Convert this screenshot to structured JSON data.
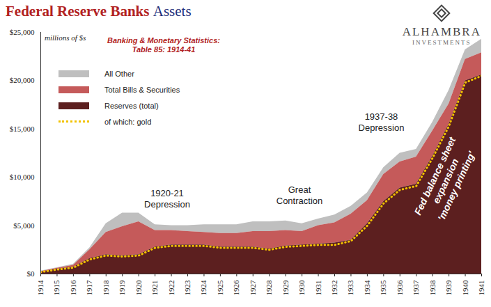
{
  "chart_data": {
    "type": "area",
    "title": "Federal Reserve Banks Assets",
    "logo": [
      "ALHAMBRA",
      "INVESTMENTS"
    ],
    "ylabel": "millions of $s",
    "stacked": true,
    "grid": false,
    "legend": "top-left",
    "x": [
      1914,
      1915,
      1916,
      1917,
      1918,
      1919,
      1920,
      1921,
      1922,
      1923,
      1924,
      1925,
      1926,
      1927,
      1928,
      1929,
      1930,
      1931,
      1932,
      1933,
      1934,
      1935,
      1936,
      1937,
      1938,
      1939,
      1940,
      1941
    ],
    "xlim": [
      1914,
      1941
    ],
    "xticks": [
      1914,
      1915,
      1916,
      1917,
      1918,
      1919,
      1920,
      1921,
      1922,
      1923,
      1924,
      1925,
      1926,
      1927,
      1928,
      1929,
      1930,
      1931,
      1932,
      1933,
      1934,
      1935,
      1936,
      1937,
      1938,
      1939,
      1940,
      1941
    ],
    "ylim": [
      0,
      25000
    ],
    "yticks": [
      {
        "value": 0,
        "label": "$0"
      },
      {
        "value": 5000,
        "label": "$5,000"
      },
      {
        "value": 10000,
        "label": "$10,000"
      },
      {
        "value": 15000,
        "label": "$15,000"
      },
      {
        "value": 20000,
        "label": "$20,000"
      },
      {
        "value": 25000,
        "label": "$25,000"
      }
    ],
    "series": [
      {
        "name": "All Other",
        "type": "area",
        "color": "#bfbfbf",
        "values": [
          50,
          50,
          100,
          200,
          900,
          1400,
          900,
          600,
          500,
          600,
          800,
          900,
          900,
          1000,
          1000,
          1000,
          800,
          700,
          800,
          800,
          800,
          700,
          900,
          800,
          900,
          1400,
          1000,
          1400
        ]
      },
      {
        "name": "Total Bills & Securities",
        "type": "area",
        "color": "#c55a5a",
        "values": [
          50,
          100,
          200,
          900,
          2300,
          3000,
          3400,
          1700,
          1500,
          1400,
          1300,
          1400,
          1400,
          1600,
          1800,
          1600,
          1400,
          1900,
          2100,
          2700,
          2400,
          2800,
          2700,
          2800,
          2600,
          2100,
          2200,
          2300
        ]
      },
      {
        "name": "Reserves (total)",
        "type": "area",
        "color": "#5c1f1f",
        "values": [
          200,
          500,
          700,
          1600,
          2000,
          1900,
          2000,
          2800,
          3000,
          3000,
          3000,
          2800,
          2800,
          2800,
          2600,
          2900,
          3000,
          3100,
          3200,
          3500,
          5200,
          7500,
          8900,
          9300,
          12200,
          15500,
          20000,
          20600
        ]
      },
      {
        "name": "of which: gold",
        "type": "line",
        "line_style": "dotted",
        "color": "#f2c200",
        "values": [
          200,
          450,
          650,
          1500,
          1900,
          1800,
          1900,
          2700,
          2900,
          2900,
          2900,
          2700,
          2700,
          2700,
          2500,
          2800,
          2900,
          3000,
          3000,
          3400,
          5000,
          7300,
          8700,
          9100,
          12000,
          15300,
          19800,
          20500
        ]
      }
    ],
    "annotations": [
      "Banking & Monetary Statistics:\nTable 85: 1914-41",
      "1920-21\nDepression",
      "Great\nContraction",
      "1937-38\nDepression",
      "Fed balance sheet\nexpansion\n'money printing'"
    ]
  }
}
